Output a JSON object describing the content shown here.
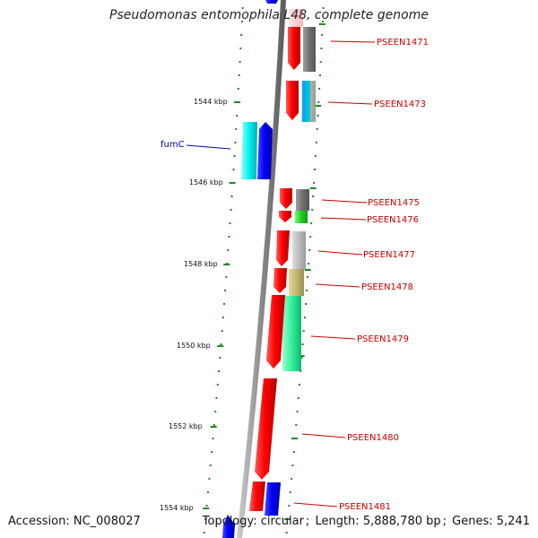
{
  "title": "Pseudomonas entomophila L48, complete genome",
  "accession_label": "Accession:",
  "accession": "NC_008027",
  "topology_label": "Topology:",
  "topology": "circular",
  "length_label": "Length:",
  "length": "5,888,780 bp",
  "genes_label": "Genes:",
  "genes": "5,241",
  "ruler_ticks": [
    "1544 kbp",
    "1546 kbp",
    "1548 kbp",
    "1550 kbp",
    "1552 kbp",
    "1554 kbp"
  ],
  "gene_labels": [
    {
      "name": "PSEEN1471",
      "color": "#cc0000"
    },
    {
      "name": "PSEEN1473",
      "color": "#cc0000"
    },
    {
      "name": "fumC",
      "color": "#0000aa"
    },
    {
      "name": "PSEEN1475",
      "color": "#cc0000"
    },
    {
      "name": "PSEEN1476",
      "color": "#cc0000"
    },
    {
      "name": "PSEEN1477",
      "color": "#cc0000"
    },
    {
      "name": "PSEEN1478",
      "color": "#cc0000"
    },
    {
      "name": "PSEEN1479",
      "color": "#cc0000"
    },
    {
      "name": "PSEEN1480",
      "color": "#cc0000"
    },
    {
      "name": "PSEEN1481",
      "color": "#cc0000"
    }
  ],
  "colors": {
    "backbone": "#8a8a8a",
    "gene_forward": "#ee0000",
    "gene_reverse": "#0000ee",
    "ruler_dots": "#228822",
    "gene_label": "#cc0000",
    "fumc_label": "#0000aa",
    "cog_cyan": "#00e5e5",
    "cog_gray": "#808080",
    "cog_lightgray": "#bbbbbb",
    "cog_green": "#22cc22",
    "cog_olive": "#c2b870",
    "cog_mint": "#33ee99"
  }
}
